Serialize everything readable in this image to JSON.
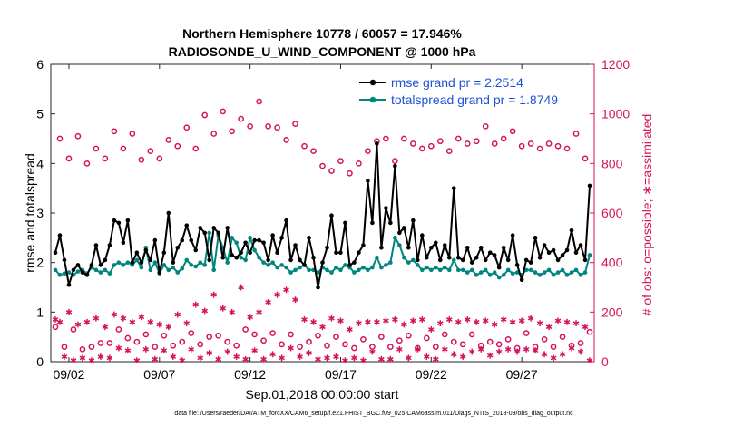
{
  "chart_data": {
    "type": "line",
    "title_line1": "Northern Hemisphere 10778 / 60057 = 17.946%",
    "title_line2": "RADIOSONDE_U_WIND_COMPONENT @ 1000 hPa",
    "ylabel_left": "rmse and totalspread",
    "ylabel_right": "# of obs: o=possible; ∗=assimilated",
    "xlabel": "Sep.01,2018 00:00:00 start",
    "footnote": "data file: /Users/raeder/DAI/ATM_forcXX/CAM6_setup/f.e21.FHIST_BGC.f09_025.CAM6assim.011/Diags_NTrS_2018-09/obs_diag_output.nc",
    "ylim_left": [
      0,
      6
    ],
    "ylim_right": [
      0,
      1200
    ],
    "xlim": [
      1.0,
      31.0
    ],
    "yticks_left": [
      0,
      1,
      2,
      3,
      4,
      5,
      6
    ],
    "yticks_right": [
      0,
      200,
      400,
      600,
      800,
      1000,
      1200
    ],
    "xticks": [
      {
        "day": 2,
        "label": "09/02"
      },
      {
        "day": 7,
        "label": "09/07"
      },
      {
        "day": 12,
        "label": "09/12"
      },
      {
        "day": 17,
        "label": "09/17"
      },
      {
        "day": 22,
        "label": "09/22"
      },
      {
        "day": 27,
        "label": "09/27"
      }
    ],
    "time_start_day": 1.25,
    "time_step_days": 0.25,
    "colors": {
      "rmse": "#000000",
      "spread": "#00857f",
      "obs": "#d6125e",
      "legend_text": "#1f52d6"
    },
    "series": [
      {
        "name": "rmse grand pr = 2.2514",
        "key": "rmse",
        "values": [
          2.2,
          2.55,
          2.05,
          1.55,
          1.85,
          1.95,
          1.8,
          1.75,
          1.95,
          2.35,
          1.95,
          2.05,
          2.35,
          2.85,
          2.8,
          2.4,
          2.85,
          2.0,
          2.2,
          2.0,
          2.25,
          2.05,
          2.45,
          1.8,
          2.2,
          3.0,
          2.0,
          2.3,
          2.45,
          2.75,
          2.45,
          2.25,
          2.7,
          2.6,
          2.05,
          2.7,
          2.6,
          2.1,
          2.7,
          2.15,
          2.1,
          2.2,
          2.4,
          2.2,
          2.45,
          2.45,
          2.4,
          2.05,
          2.55,
          2.2,
          2.5,
          2.85,
          2.05,
          2.35,
          2.05,
          1.95,
          2.5,
          2.1,
          1.5,
          2.0,
          2.3,
          2.95,
          2.2,
          2.2,
          2.8,
          1.95,
          2.0,
          2.2,
          2.35,
          3.65,
          2.8,
          4.4,
          2.3,
          3.1,
          2.8,
          3.95,
          2.6,
          2.7,
          2.3,
          2.85,
          2.05,
          2.55,
          2.1,
          2.3,
          2.4,
          2.05,
          2.35,
          2.1,
          3.5,
          2.1,
          2.05,
          2.3,
          2.0,
          2.1,
          2.3,
          2.05,
          2.2,
          2.15,
          1.9,
          2.3,
          2.05,
          2.55,
          1.95,
          1.65,
          2.05,
          2.0,
          2.5,
          2.1,
          2.35,
          2.2,
          2.25,
          2.05,
          2.15,
          2.25,
          2.65,
          2.2,
          2.35,
          2.05,
          3.55
        ]
      },
      {
        "name": "totalspread grand pr = 1.8749",
        "key": "spread",
        "values": [
          1.85,
          1.75,
          1.78,
          1.8,
          1.75,
          1.82,
          1.85,
          1.78,
          1.9,
          1.85,
          1.8,
          1.85,
          1.78,
          1.95,
          2.0,
          1.95,
          2.0,
          1.95,
          2.05,
          1.9,
          2.3,
          1.85,
          2.0,
          1.78,
          1.95,
          1.85,
          1.9,
          1.8,
          1.88,
          2.05,
          1.95,
          1.92,
          2.0,
          1.95,
          2.6,
          1.85,
          2.55,
          2.3,
          2.0,
          2.5,
          2.4,
          2.1,
          2.05,
          2.5,
          2.25,
          2.1,
          2.0,
          1.95,
          2.0,
          1.9,
          1.95,
          1.9,
          1.8,
          1.85,
          1.9,
          1.95,
          1.85,
          1.85,
          1.8,
          1.9,
          1.85,
          1.8,
          1.9,
          1.85,
          1.95,
          1.9,
          1.8,
          1.85,
          1.9,
          1.85,
          1.9,
          2.1,
          1.9,
          1.95,
          2.0,
          2.5,
          2.35,
          2.1,
          2.0,
          2.05,
          1.95,
          1.85,
          1.9,
          1.85,
          1.9,
          1.85,
          1.9,
          1.85,
          2.05,
          1.85,
          1.85,
          1.8,
          1.85,
          1.75,
          1.8,
          1.85,
          1.75,
          1.8,
          1.7,
          1.75,
          1.85,
          1.78,
          1.8,
          1.75,
          1.85,
          1.85,
          1.8,
          1.75,
          1.8,
          1.85,
          1.75,
          1.8,
          1.85,
          1.75,
          1.8,
          1.85,
          1.75,
          1.8,
          2.15
        ]
      },
      {
        "name": "possible",
        "key": "possible",
        "values": [
          140,
          900,
          60,
          820,
          130,
          910,
          50,
          800,
          60,
          860,
          75,
          820,
          75,
          930,
          130,
          860,
          95,
          920,
          80,
          815,
          110,
          850,
          60,
          820,
          105,
          895,
          65,
          870,
          80,
          945,
          115,
          860,
          70,
          995,
          100,
          920,
          105,
          1010,
          80,
          930,
          65,
          980,
          130,
          950,
          110,
          1050,
          85,
          950,
          115,
          945,
          70,
          895,
          110,
          960,
          60,
          870,
          80,
          850,
          105,
          790,
          65,
          770,
          100,
          810,
          70,
          760,
          55,
          800,
          90,
          850,
          60,
          890,
          100,
          900,
          60,
          810,
          85,
          900,
          105,
          880,
          55,
          860,
          95,
          870,
          60,
          890,
          110,
          850,
          80,
          900,
          70,
          880,
          110,
          890,
          65,
          950,
          80,
          880,
          70,
          900,
          90,
          930,
          55,
          870,
          115,
          880,
          60,
          860,
          90,
          880,
          60,
          870,
          100,
          860,
          65,
          920,
          75,
          820,
          120
        ]
      },
      {
        "name": "assimilated",
        "key": "assimilated",
        "values": [
          170,
          160,
          20,
          200,
          5,
          150,
          15,
          160,
          5,
          175,
          20,
          140,
          15,
          190,
          55,
          175,
          45,
          160,
          5,
          180,
          50,
          160,
          10,
          150,
          45,
          140,
          20,
          190,
          5,
          155,
          50,
          230,
          15,
          205,
          35,
          270,
          10,
          215,
          40,
          200,
          20,
          300,
          10,
          180,
          45,
          200,
          10,
          240,
          30,
          270,
          15,
          290,
          55,
          250,
          20,
          170,
          35,
          160,
          10,
          140,
          15,
          175,
          20,
          165,
          5,
          130,
          15,
          155,
          5,
          160,
          40,
          160,
          10,
          165,
          10,
          170,
          50,
          150,
          15,
          165,
          50,
          170,
          20,
          130,
          10,
          155,
          50,
          170,
          30,
          160,
          20,
          170,
          40,
          160,
          50,
          165,
          25,
          150,
          40,
          170,
          50,
          160,
          40,
          165,
          50,
          175,
          45,
          155,
          30,
          140,
          15,
          165,
          30,
          160,
          55,
          155,
          40,
          140,
          5
        ]
      }
    ]
  }
}
